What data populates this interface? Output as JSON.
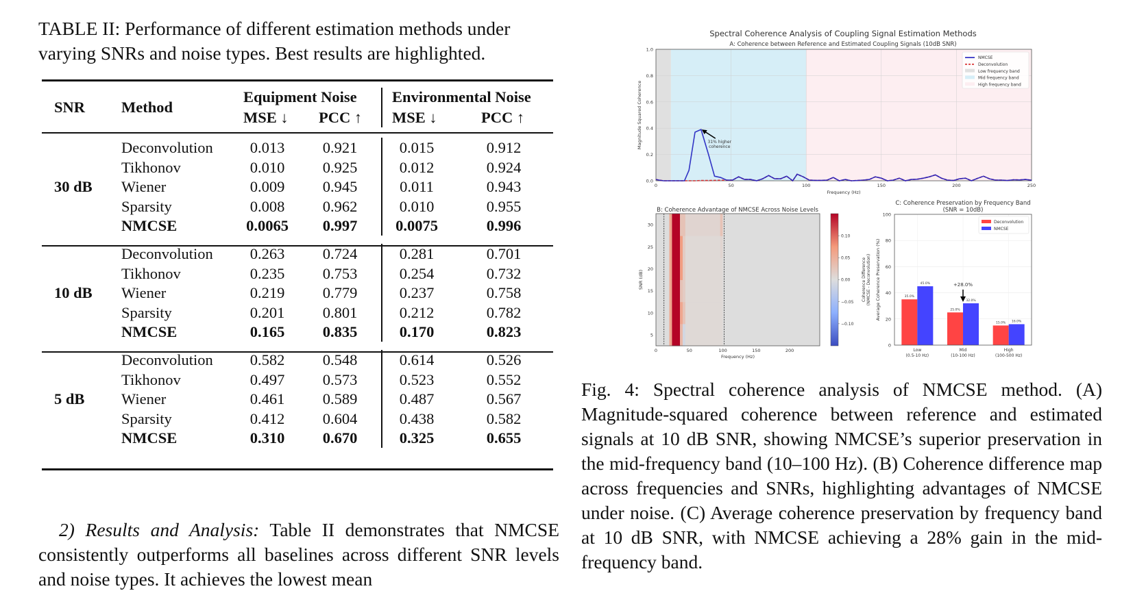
{
  "table": {
    "caption": "TABLE II: Performance of different estimation methods under varying SNRs and noise types. Best results are highlighted.",
    "caption_line1": "TABLE II: Performance of different estimation methods under",
    "caption_line2": "varying SNRs and noise types. Best results are highlighted.",
    "headers": {
      "snr": "SNR",
      "method": "Method",
      "group1": "Equipment Noise",
      "group2": "Environmental Noise",
      "mse": "MSE ↓",
      "pcc": "PCC ↑"
    },
    "groups": [
      {
        "snr": "30 dB",
        "rows": [
          {
            "method": "Deconvolution",
            "eq_mse": "0.013",
            "eq_pcc": "0.921",
            "env_mse": "0.015",
            "env_pcc": "0.912",
            "best": false
          },
          {
            "method": "Tikhonov",
            "eq_mse": "0.010",
            "eq_pcc": "0.925",
            "env_mse": "0.012",
            "env_pcc": "0.924",
            "best": false
          },
          {
            "method": "Wiener",
            "eq_mse": "0.009",
            "eq_pcc": "0.945",
            "env_mse": "0.011",
            "env_pcc": "0.943",
            "best": false
          },
          {
            "method": "Sparsity",
            "eq_mse": "0.008",
            "eq_pcc": "0.962",
            "env_mse": "0.010",
            "env_pcc": "0.955",
            "best": false
          },
          {
            "method": "NMCSE",
            "eq_mse": "0.0065",
            "eq_pcc": "0.997",
            "env_mse": "0.0075",
            "env_pcc": "0.996",
            "best": true
          }
        ]
      },
      {
        "snr": "10 dB",
        "rows": [
          {
            "method": "Deconvolution",
            "eq_mse": "0.263",
            "eq_pcc": "0.724",
            "env_mse": "0.281",
            "env_pcc": "0.701",
            "best": false
          },
          {
            "method": "Tikhonov",
            "eq_mse": "0.235",
            "eq_pcc": "0.753",
            "env_mse": "0.254",
            "env_pcc": "0.732",
            "best": false
          },
          {
            "method": "Wiener",
            "eq_mse": "0.219",
            "eq_pcc": "0.779",
            "env_mse": "0.237",
            "env_pcc": "0.758",
            "best": false
          },
          {
            "method": "Sparsity",
            "eq_mse": "0.201",
            "eq_pcc": "0.801",
            "env_mse": "0.212",
            "env_pcc": "0.782",
            "best": false
          },
          {
            "method": "NMCSE",
            "eq_mse": "0.165",
            "eq_pcc": "0.835",
            "env_mse": "0.170",
            "env_pcc": "0.823",
            "best": true
          }
        ]
      },
      {
        "snr": "5 dB",
        "rows": [
          {
            "method": "Deconvolution",
            "eq_mse": "0.582",
            "eq_pcc": "0.548",
            "env_mse": "0.614",
            "env_pcc": "0.526",
            "best": false
          },
          {
            "method": "Tikhonov",
            "eq_mse": "0.497",
            "eq_pcc": "0.573",
            "env_mse": "0.523",
            "env_pcc": "0.552",
            "best": false
          },
          {
            "method": "Wiener",
            "eq_mse": "0.461",
            "eq_pcc": "0.589",
            "env_mse": "0.487",
            "env_pcc": "0.567",
            "best": false
          },
          {
            "method": "Sparsity",
            "eq_mse": "0.412",
            "eq_pcc": "0.604",
            "env_mse": "0.438",
            "env_pcc": "0.582",
            "best": false
          },
          {
            "method": "NMCSE",
            "eq_mse": "0.310",
            "eq_pcc": "0.670",
            "env_mse": "0.325",
            "env_pcc": "0.655",
            "best": true
          }
        ]
      }
    ]
  },
  "body": {
    "heading": "2) Results and Analysis:",
    "text": " Table II demonstrates that NMCSE consistently outperforms all baselines across different SNR levels and noise types. It achieves the lowest mean"
  },
  "figure": {
    "caption": "Fig. 4: Spectral coherence analysis of NMCSE method. (A) Magnitude-squared coherence between reference and estimated signals at 10 dB SNR, showing NMCSE’s superior preservation in the mid-frequency band (10–100 Hz). (B) Coherence difference map across frequencies and SNRs, highlighting advantages of NMCSE under noise. (C) Average coherence preservation by frequency band at 10 dB SNR, with NMCSE achieving a 28% gain in the mid-frequency band.",
    "suptitle": "Spectral Coherence Analysis of Coupling Signal Estimation Methods"
  },
  "colors": {
    "nmcse_line": "#1f1fbf",
    "deconv_line": "#d62728",
    "low_band": "#e0e0e0",
    "mid_band": "#d6eef7",
    "high_band": "#fdeef1",
    "bar_deconv": "#ff4444",
    "bar_nmcse": "#4444ff"
  },
  "chart_data": [
    {
      "type": "line",
      "panel": "A",
      "title": "A: Coherence between Reference and Estimated Coupling Signals (10dB SNR)",
      "xlabel": "Frequency (Hz)",
      "ylabel": "Magnitude Squared Coherence",
      "xlim": [
        0,
        250
      ],
      "ylim": [
        0,
        1.0
      ],
      "xticks": [
        0,
        50,
        100,
        150,
        200,
        250
      ],
      "yticks": [
        0.0,
        0.2,
        0.4,
        0.6,
        0.8,
        1.0
      ],
      "grid": true,
      "legend_position": "top-right",
      "bands": [
        {
          "name": "Low frequency band",
          "range": [
            0,
            10
          ]
        },
        {
          "name": "Mid frequency band",
          "range": [
            10,
            100
          ]
        },
        {
          "name": "High frequency band",
          "range": [
            100,
            250
          ]
        }
      ],
      "x": [
        0,
        2,
        5,
        10,
        15,
        19,
        22,
        26,
        30,
        35,
        39,
        43,
        47,
        51,
        55,
        59,
        63,
        67,
        71,
        75,
        79,
        83,
        87,
        91,
        94,
        98,
        102,
        106,
        110,
        114,
        118,
        122,
        126,
        130,
        134,
        138,
        142,
        146,
        150,
        154,
        158,
        162,
        166,
        170,
        174,
        178,
        182,
        186,
        190,
        194,
        198,
        202,
        206,
        210,
        214,
        218,
        222,
        226,
        230,
        234,
        238,
        242,
        246,
        250
      ],
      "series": [
        {
          "name": "NMCSE",
          "style": "solid",
          "values": [
            0.01,
            0.005,
            0,
            0,
            0,
            0,
            0.08,
            0.37,
            0.39,
            0.2,
            0.035,
            0.025,
            0.005,
            0.005,
            0.03,
            0.01,
            0.01,
            0.0,
            0.015,
            0.04,
            0.015,
            0.015,
            0.035,
            0.0,
            0.05,
            0.03,
            0.005,
            0.003,
            0.003,
            0.005,
            0.025,
            0.0,
            0.01,
            0.0,
            0.002,
            0.005,
            0.01,
            0.03,
            0.02,
            0.0,
            0.005,
            0.02,
            0.0,
            0.01,
            0.012,
            0.02,
            0.03,
            0.045,
            0.02,
            0.005,
            0.002,
            0.015,
            0.02,
            0.0,
            0.018,
            0.035,
            0.015,
            0.005,
            0.005,
            0.002,
            0.008,
            0.006,
            0.01,
            0.004
          ]
        },
        {
          "name": "Deconvolution",
          "style": "dashed",
          "values": [
            0.01,
            0.005,
            0,
            0,
            0,
            0,
            0,
            0,
            0.002,
            0.002,
            0.003,
            0.004,
            0.004,
            0.005,
            0.03,
            0.01,
            0.01,
            0.0,
            0.015,
            0.04,
            0.015,
            0.015,
            0.035,
            0.0,
            0.05,
            0.03,
            0.005,
            0.003,
            0.003,
            0.005,
            0.025,
            0.0,
            0.01,
            0.0,
            0.002,
            0.005,
            0.01,
            0.03,
            0.02,
            0.0,
            0.005,
            0.02,
            0.0,
            0.01,
            0.012,
            0.02,
            0.03,
            0.045,
            0.02,
            0.005,
            0.002,
            0.015,
            0.02,
            0.0,
            0.018,
            0.035,
            0.015,
            0.005,
            0.005,
            0.002,
            0.008,
            0.006,
            0.01,
            0.004
          ]
        }
      ],
      "annotations": [
        {
          "text": "31% higher coherence",
          "x": 30,
          "y": 0.39
        }
      ]
    },
    {
      "type": "heatmap",
      "panel": "B",
      "title": "B: Coherence Advantage of NMCSE Across Noise Levels",
      "xlabel": "Frequency (Hz)",
      "ylabel": "SNR (dB)",
      "xlim": [
        0,
        245
      ],
      "ylim": [
        2.5,
        32.5
      ],
      "xticks": [
        0,
        50,
        100,
        150,
        200
      ],
      "yticks": [
        5,
        10,
        15,
        20,
        25,
        30
      ],
      "colorbar": {
        "label": "Coherence Difference\n(NMCSE - Deconvolution)",
        "range": [
          -0.15,
          0.15
        ],
        "ticks": [
          -0.1,
          -0.05,
          0.0,
          0.05,
          0.1
        ],
        "tick_labels": [
          "−0.10",
          "−0.05",
          "0.00",
          "0.05",
          "0.10"
        ]
      },
      "vlines": [
        12,
        102
      ],
      "snr_rows": [
        5,
        10,
        15,
        20,
        25,
        30
      ],
      "columns": [
        {
          "f_range": [
            0,
            20
          ],
          "values": [
            0,
            0,
            0,
            0,
            0,
            0
          ]
        },
        {
          "f_range": [
            20,
            24
          ],
          "values": [
            0.06,
            0.06,
            0.06,
            0.06,
            0.06,
            0.06
          ]
        },
        {
          "f_range": [
            24,
            36
          ],
          "values": [
            0.15,
            0.15,
            0.15,
            0.15,
            0.15,
            0.15
          ]
        },
        {
          "f_range": [
            36,
            40
          ],
          "values": [
            0.04,
            0.06,
            0.03,
            0.07,
            0.07,
            0.03
          ]
        },
        {
          "f_range": [
            40,
            44
          ],
          "values": [
            -0.01,
            0.03,
            0.02,
            0.02,
            0.02,
            0.03
          ]
        },
        {
          "f_range": [
            44,
            96
          ],
          "values": [
            0.005,
            0.005,
            0.005,
            0.005,
            0.005,
            0.01
          ]
        },
        {
          "f_range": [
            96,
            100
          ],
          "values": [
            0.005,
            0.005,
            0.005,
            0.005,
            0.01,
            0.03
          ]
        },
        {
          "f_range": [
            100,
            245
          ],
          "values": [
            0,
            0,
            0,
            0,
            0,
            0
          ]
        }
      ]
    },
    {
      "type": "bar",
      "panel": "C",
      "title": "C: Coherence Preservation by Frequency Band\n(SNR = 10dB)",
      "title_line1": "C: Coherence Preservation by Frequency Band",
      "title_line2": "(SNR = 10dB)",
      "xlabel": "",
      "ylabel": "Average Coherence Preservation (%)",
      "ylim": [
        0,
        100
      ],
      "yticks": [
        0,
        20,
        40,
        60,
        80,
        100
      ],
      "grid": true,
      "legend_position": "top-right",
      "categories": [
        "Low\n(0.5-10 Hz)",
        "Mid\n(10-100 Hz)",
        "High\n(100-500 Hz)"
      ],
      "category_lines": [
        [
          "Low",
          "(0.5-10 Hz)"
        ],
        [
          "Mid",
          "(10-100 Hz)"
        ],
        [
          "High",
          "(100-500 Hz)"
        ]
      ],
      "series": [
        {
          "name": "Deconvolution",
          "values": [
            35.0,
            25.0,
            15.0
          ],
          "labels": [
            "35.0%",
            "25.0%",
            "15.0%"
          ]
        },
        {
          "name": "NMCSE",
          "values": [
            45.0,
            32.0,
            16.0
          ],
          "labels": [
            "45.0%",
            "32.0%",
            "16.0%"
          ]
        }
      ],
      "annotations": [
        {
          "text": "+28.0%",
          "category": "Mid"
        }
      ]
    }
  ]
}
